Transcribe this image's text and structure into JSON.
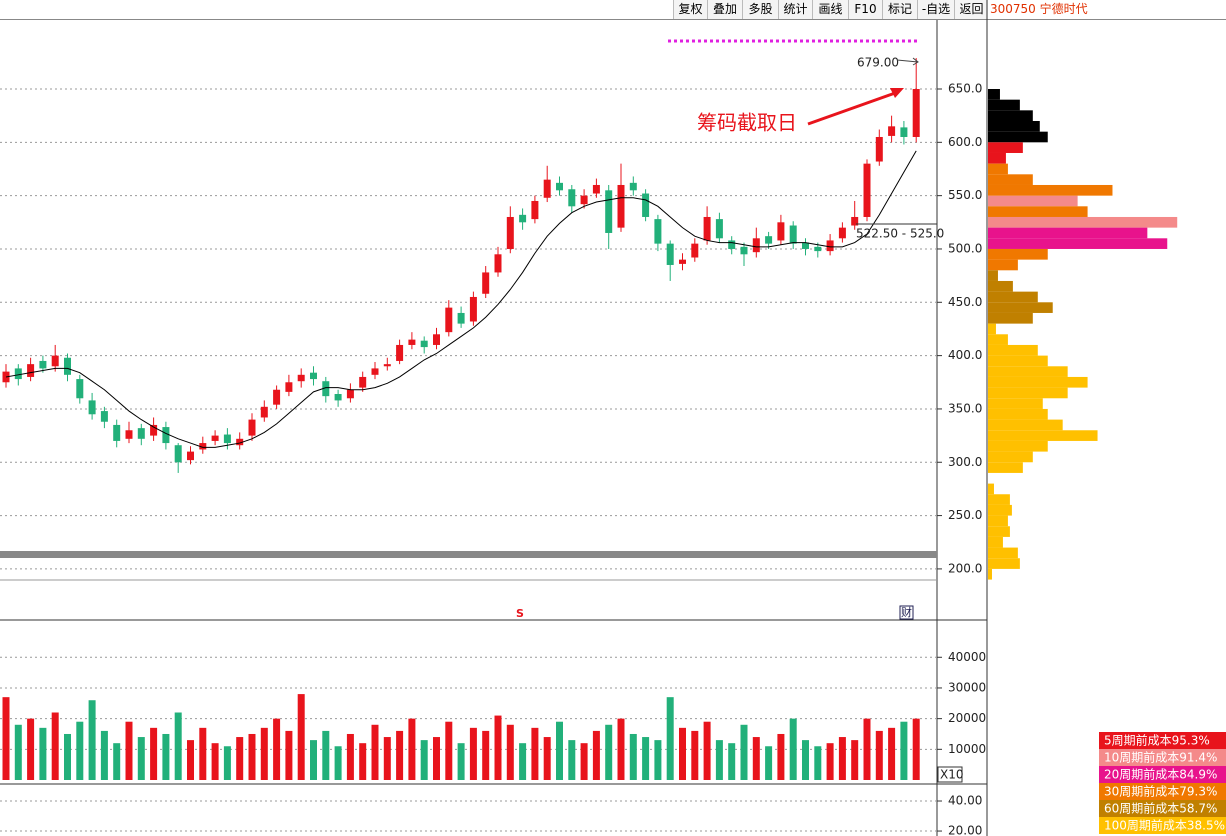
{
  "toolbar": {
    "buttons": [
      "复权",
      "叠加",
      "多股",
      "统计",
      "画线",
      "F10",
      "标记",
      "-自选",
      "返回"
    ],
    "symbol": "300750 宁德时代"
  },
  "chart_data": [
    {
      "type": "candlestick",
      "ylim": [
        189.6,
        714.7
      ],
      "yticks": [
        {
          "value": 650,
          "label": "650.0"
        },
        {
          "value": 600,
          "label": "600.0"
        },
        {
          "value": 550,
          "label": "550.0"
        },
        {
          "value": 500,
          "label": "500.0"
        },
        {
          "value": 450,
          "label": "450.0"
        },
        {
          "value": 400,
          "label": "400.0"
        },
        {
          "value": 350,
          "label": "350.0"
        },
        {
          "value": 300,
          "label": "300.0"
        },
        {
          "value": 250,
          "label": "250.0"
        },
        {
          "value": 200,
          "label": "200.0"
        }
      ],
      "up_color": "#e8141c",
      "down_color": "#22b07a",
      "open": [
        375,
        388,
        380,
        395,
        390,
        398,
        378,
        358,
        348,
        335,
        322,
        332,
        325,
        333,
        316,
        302,
        312,
        320,
        326,
        316,
        325,
        342,
        354,
        366,
        376,
        384,
        376,
        364,
        360,
        370,
        382,
        390,
        395,
        410,
        414,
        410,
        422,
        440,
        432,
        458,
        478,
        500,
        532,
        528,
        548,
        562,
        556,
        542,
        552,
        555,
        520,
        562,
        552,
        528,
        505,
        486,
        492,
        508,
        528,
        508,
        502,
        497,
        512,
        508,
        522,
        506,
        502,
        498,
        510,
        522,
        530,
        582,
        606,
        614,
        605
      ],
      "high": [
        392,
        392,
        398,
        400,
        410,
        402,
        382,
        365,
        352,
        340,
        338,
        336,
        342,
        338,
        318,
        315,
        324,
        330,
        332,
        328,
        346,
        358,
        372,
        382,
        388,
        390,
        380,
        368,
        374,
        385,
        394,
        398,
        415,
        422,
        418,
        426,
        452,
        446,
        460,
        484,
        502,
        540,
        538,
        550,
        578,
        568,
        560,
        556,
        566,
        560,
        580,
        568,
        556,
        532,
        508,
        496,
        510,
        540,
        534,
        512,
        506,
        520,
        516,
        532,
        526,
        510,
        506,
        514,
        525,
        545,
        584,
        612,
        625,
        620,
        679
      ],
      "low": [
        370,
        372,
        376,
        384,
        385,
        376,
        355,
        340,
        332,
        314,
        318,
        316,
        320,
        312,
        290,
        298,
        308,
        316,
        312,
        312,
        320,
        338,
        350,
        362,
        370,
        372,
        356,
        352,
        356,
        366,
        378,
        386,
        392,
        406,
        402,
        406,
        418,
        426,
        428,
        454,
        474,
        496,
        518,
        524,
        544,
        550,
        534,
        538,
        548,
        500,
        516,
        550,
        526,
        498,
        470,
        480,
        488,
        504,
        506,
        495,
        484,
        492,
        500,
        504,
        500,
        494,
        492,
        494,
        506,
        518,
        526,
        578,
        600,
        598,
        600
      ],
      "close": [
        385,
        378,
        392,
        388,
        400,
        382,
        360,
        345,
        338,
        320,
        330,
        322,
        335,
        318,
        300,
        310,
        318,
        325,
        318,
        322,
        340,
        352,
        368,
        375,
        382,
        378,
        362,
        358,
        368,
        380,
        388,
        392,
        410,
        415,
        408,
        420,
        445,
        430,
        455,
        478,
        495,
        530,
        525,
        545,
        565,
        555,
        540,
        550,
        560,
        515,
        560,
        555,
        530,
        505,
        485,
        490,
        505,
        530,
        510,
        500,
        495,
        510,
        505,
        525,
        505,
        500,
        498,
        508,
        520,
        530,
        580,
        605,
        615,
        605,
        650
      ],
      "ma": {
        "color": "#000000",
        "values": [
          380,
          382,
          384,
          386,
          388,
          388,
          384,
          376,
          368,
          358,
          348,
          340,
          333,
          327,
          322,
          318,
          314,
          314,
          316,
          318,
          322,
          328,
          336,
          346,
          356,
          366,
          370,
          370,
          368,
          368,
          370,
          374,
          380,
          388,
          396,
          402,
          410,
          418,
          426,
          436,
          448,
          462,
          478,
          496,
          512,
          524,
          534,
          540,
          544,
          546,
          548,
          548,
          546,
          540,
          530,
          520,
          512,
          508,
          506,
          506,
          504,
          502,
          502,
          504,
          506,
          506,
          504,
          502,
          502,
          506,
          514,
          532,
          552,
          572,
          592
        ]
      },
      "annotations": {
        "high_label": "679.00",
        "chip_date": "筹码截取日",
        "range_label": "522.50 - 525.0",
        "signal": "S",
        "finance": "财"
      }
    },
    {
      "type": "bar",
      "ylim": [
        0,
        51500
      ],
      "yticks": [
        40000,
        30000,
        20000,
        10000
      ],
      "unit_label": "X10",
      "values": [
        27000,
        18000,
        20000,
        17000,
        22000,
        15000,
        19000,
        26000,
        16000,
        12000,
        19000,
        14000,
        17000,
        15000,
        22000,
        13000,
        17000,
        12000,
        11000,
        14000,
        15000,
        17000,
        20000,
        16000,
        28000,
        13000,
        16000,
        11000,
        15000,
        12000,
        18000,
        14000,
        16000,
        20000,
        13000,
        14000,
        19000,
        12000,
        17000,
        16000,
        21000,
        18000,
        12000,
        17000,
        14000,
        19000,
        13000,
        12000,
        16000,
        18000,
        20000,
        15000,
        14000,
        13000,
        27000,
        17000,
        16000,
        19000,
        13000,
        12000,
        18000,
        14000,
        11000,
        15000,
        20000,
        13000,
        11000,
        12000,
        14000,
        13000,
        20000,
        16000,
        17000,
        19000,
        20000
      ]
    },
    {
      "type": "line",
      "ylim": [
        16.7,
        50
      ],
      "yticks": [
        {
          "value": 40,
          "label": "40.00"
        },
        {
          "value": 20,
          "label": "20.00"
        }
      ]
    },
    {
      "type": "chip",
      "xlim": [
        0,
        240
      ],
      "series": [
        {
          "color": "#000000",
          "prices": [
            645,
            635,
            625,
            615,
            605
          ],
          "amounts": [
            12,
            32,
            45,
            52,
            60
          ]
        },
        {
          "name": "5周期前成本95.3%",
          "color": "#e8141c",
          "prices": [
            595,
            585
          ],
          "amounts": [
            35,
            18
          ]
        },
        {
          "name": "10周期前成本91.4%",
          "color": "#f48a8a",
          "prices": [
            525,
            545
          ],
          "amounts": [
            190,
            90
          ]
        },
        {
          "name": "20周期前成本84.9%",
          "color": "#e8138c",
          "prices": [
            505,
            515
          ],
          "amounts": [
            180,
            160
          ]
        },
        {
          "name": "30周期前成本79.3%",
          "color": "#f07800",
          "prices": [
            485,
            495,
            535,
            555,
            565,
            575
          ],
          "amounts": [
            30,
            60,
            100,
            125,
            45,
            20
          ]
        },
        {
          "name": "60周期前成本58.7%",
          "color": "#c08000",
          "prices": [
            435,
            445,
            455,
            465,
            475
          ],
          "amounts": [
            45,
            65,
            50,
            25,
            10
          ]
        },
        {
          "name": "100周期前成本38.5%",
          "color": "#ffc000",
          "prices": [
            195,
            205,
            215,
            225,
            235,
            245,
            255,
            265,
            275,
            295,
            305,
            315,
            325,
            335,
            345,
            355,
            365,
            375,
            385,
            395,
            405,
            415,
            425
          ],
          "amounts": [
            4,
            32,
            30,
            15,
            22,
            20,
            24,
            22,
            6,
            35,
            45,
            60,
            110,
            75,
            60,
            55,
            80,
            100,
            80,
            60,
            50,
            20,
            8
          ]
        }
      ]
    }
  ]
}
